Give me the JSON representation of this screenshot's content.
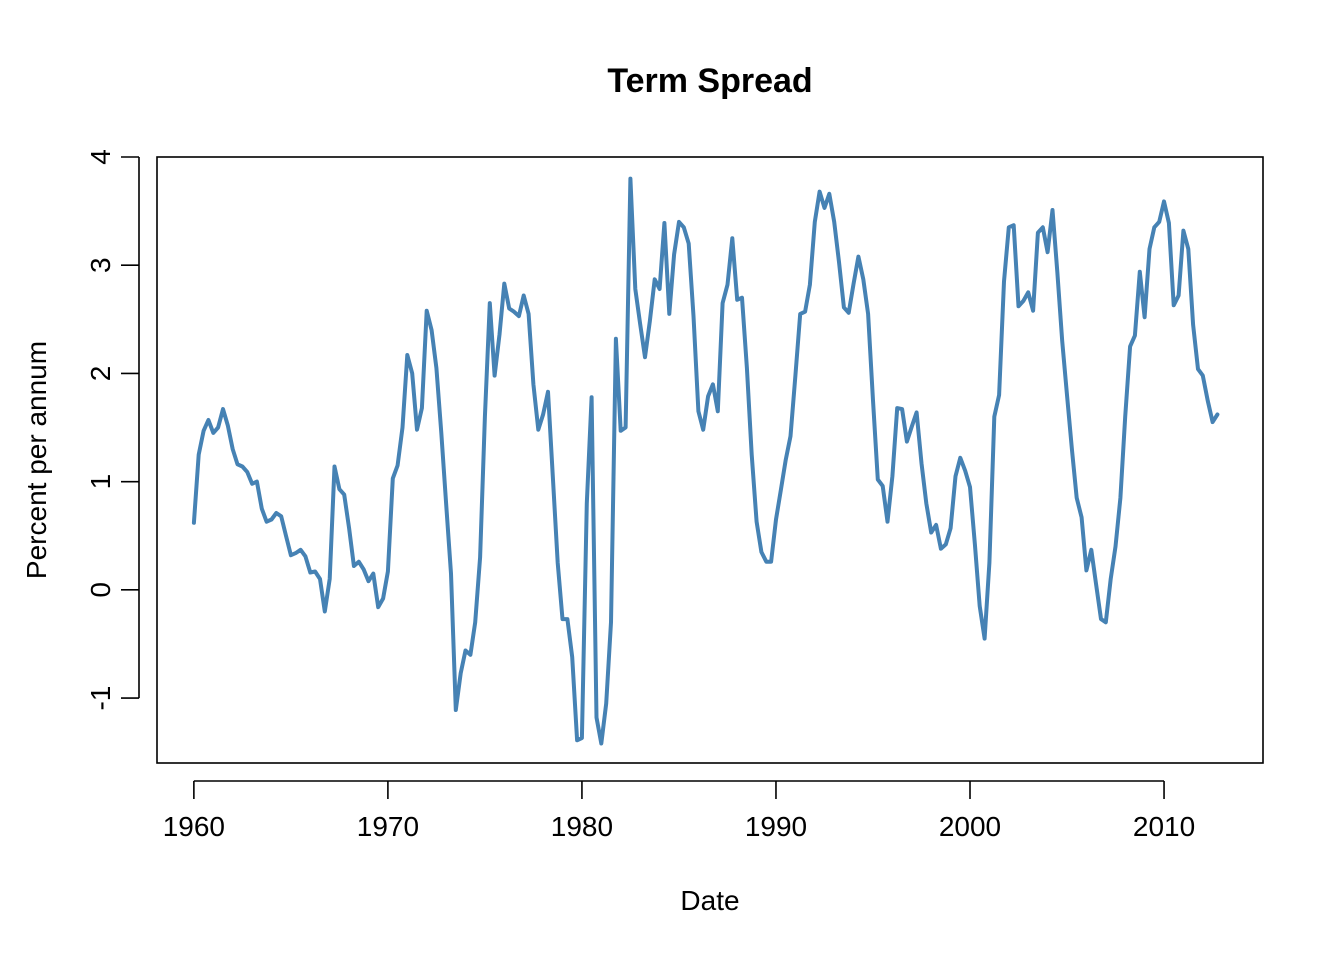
{
  "chart_data": {
    "type": "line",
    "title": "Term Spread",
    "xlabel": "Date",
    "ylabel": "Percent per annum",
    "xlim": [
      1958.1,
      2015.1
    ],
    "ylim": [
      -1.6,
      4.0
    ],
    "x_ticks": [
      1960,
      1970,
      1980,
      1990,
      2000,
      2010
    ],
    "y_ticks": [
      -1,
      0,
      1,
      2,
      3,
      4
    ],
    "x_tick_labels": [
      "1960",
      "1970",
      "1980",
      "1990",
      "2000",
      "2010"
    ],
    "y_tick_labels": [
      "-1",
      "0",
      "1",
      "2",
      "3",
      "4"
    ],
    "grid": false,
    "legend": "none",
    "color": "#4682b4",
    "series": [
      {
        "x": [
          1960.0,
          1960.25,
          1960.5,
          1960.75,
          1961.0,
          1961.25,
          1961.5,
          1961.75,
          1962.0,
          1962.25,
          1962.5,
          1962.75,
          1963.0,
          1963.25,
          1963.5,
          1963.75,
          1964.0,
          1964.25,
          1964.5,
          1964.75,
          1965.0,
          1965.25,
          1965.5,
          1965.75,
          1966.0,
          1966.25,
          1966.5,
          1966.75,
          1967.0,
          1967.25,
          1967.5,
          1967.75,
          1968.0,
          1968.25,
          1968.5,
          1968.75,
          1969.0,
          1969.25,
          1969.5,
          1969.75,
          1970.0,
          1970.25,
          1970.5,
          1970.75,
          1971.0,
          1971.25,
          1971.5,
          1971.75,
          1972.0,
          1972.25,
          1972.5,
          1972.75,
          1973.0,
          1973.25,
          1973.5,
          1973.75,
          1974.0,
          1974.25,
          1974.5,
          1974.75,
          1975.0,
          1975.25,
          1975.5,
          1975.75,
          1976.0,
          1976.25,
          1976.5,
          1976.75,
          1977.0,
          1977.25,
          1977.5,
          1977.75,
          1978.0,
          1978.25,
          1978.5,
          1978.75,
          1979.0,
          1979.25,
          1979.5,
          1979.75,
          1980.0,
          1980.25,
          1980.5,
          1980.75,
          1981.0,
          1981.25,
          1981.5,
          1981.75,
          1982.0,
          1982.25,
          1982.5,
          1982.75,
          1983.0,
          1983.25,
          1983.5,
          1983.75,
          1984.0,
          1984.25,
          1984.5,
          1984.75,
          1985.0,
          1985.25,
          1985.5,
          1985.75,
          1986.0,
          1986.25,
          1986.5,
          1986.75,
          1987.0,
          1987.25,
          1987.5,
          1987.75,
          1988.0,
          1988.25,
          1988.5,
          1988.75,
          1989.0,
          1989.25,
          1989.5,
          1989.75,
          1990.0,
          1990.25,
          1990.5,
          1990.75,
          1991.0,
          1991.25,
          1991.5,
          1991.75,
          1992.0,
          1992.25,
          1992.5,
          1992.75,
          1993.0,
          1993.25,
          1993.5,
          1993.75,
          1994.0,
          1994.25,
          1994.5,
          1994.75,
          1995.0,
          1995.25,
          1995.5,
          1995.75,
          1996.0,
          1996.25,
          1996.5,
          1996.75,
          1997.0,
          1997.25,
          1997.5,
          1997.75,
          1998.0,
          1998.25,
          1998.5,
          1998.75,
          1999.0,
          1999.25,
          1999.5,
          1999.75,
          2000.0,
          2000.25,
          2000.5,
          2000.75,
          2001.0,
          2001.25,
          2001.5,
          2001.75,
          2002.0,
          2002.25,
          2002.5,
          2002.75,
          2003.0,
          2003.25,
          2003.5,
          2003.75,
          2004.0,
          2004.25,
          2004.5,
          2004.75,
          2005.0,
          2005.25,
          2005.5,
          2005.75,
          2006.0,
          2006.25,
          2006.5,
          2006.75,
          2007.0,
          2007.25,
          2007.5,
          2007.75,
          2008.0,
          2008.25,
          2008.5,
          2008.75,
          2009.0,
          2009.25,
          2009.5,
          2009.75,
          2010.0,
          2010.25,
          2010.5,
          2010.75,
          2011.0,
          2011.25,
          2011.5,
          2011.75,
          2012.0,
          2012.25,
          2012.5,
          2012.75
        ],
        "y": [
          0.62,
          1.25,
          1.47,
          1.57,
          1.45,
          1.5,
          1.67,
          1.52,
          1.3,
          1.16,
          1.14,
          1.09,
          0.98,
          1.0,
          0.75,
          0.63,
          0.65,
          0.71,
          0.68,
          0.5,
          0.32,
          0.34,
          0.37,
          0.31,
          0.16,
          0.17,
          0.1,
          -0.2,
          0.1,
          1.14,
          0.93,
          0.88,
          0.57,
          0.22,
          0.26,
          0.19,
          0.08,
          0.15,
          -0.16,
          -0.08,
          0.17,
          1.03,
          1.15,
          1.5,
          2.17,
          2.0,
          1.48,
          1.68,
          2.58,
          2.4,
          2.05,
          1.45,
          0.8,
          0.15,
          -1.11,
          -0.77,
          -0.56,
          -0.6,
          -0.3,
          0.3,
          1.6,
          2.65,
          1.98,
          2.36,
          2.83,
          2.6,
          2.57,
          2.53,
          2.72,
          2.55,
          1.9,
          1.48,
          1.62,
          1.83,
          1.05,
          0.25,
          -0.27,
          -0.27,
          -0.62,
          -1.39,
          -1.37,
          0.8,
          1.78,
          -1.18,
          -1.42,
          -1.05,
          -0.3,
          2.32,
          1.47,
          1.5,
          3.8,
          2.78,
          2.46,
          2.15,
          2.48,
          2.87,
          2.78,
          3.39,
          2.55,
          3.1,
          3.4,
          3.35,
          3.2,
          2.53,
          1.65,
          1.48,
          1.79,
          1.9,
          1.65,
          2.65,
          2.82,
          3.25,
          2.68,
          2.7,
          2.05,
          1.25,
          0.63,
          0.35,
          0.26,
          0.26,
          0.65,
          0.92,
          1.2,
          1.42,
          1.98,
          2.55,
          2.57,
          2.82,
          3.4,
          3.68,
          3.53,
          3.66,
          3.4,
          3.03,
          2.61,
          2.56,
          2.83,
          3.08,
          2.87,
          2.55,
          1.75,
          1.02,
          0.96,
          0.63,
          1.05,
          1.68,
          1.67,
          1.37,
          1.51,
          1.64,
          1.17,
          0.8,
          0.53,
          0.6,
          0.38,
          0.42,
          0.57,
          1.05,
          1.22,
          1.1,
          0.95,
          0.42,
          -0.15,
          -0.45,
          0.25,
          1.6,
          1.8,
          2.85,
          3.35,
          3.37,
          2.62,
          2.67,
          2.75,
          2.58,
          3.3,
          3.35,
          3.12,
          3.51,
          2.94,
          2.3,
          1.8,
          1.3,
          0.85,
          0.67,
          0.18,
          0.37,
          0.05,
          -0.27,
          -0.3,
          0.1,
          0.4,
          0.85,
          1.6,
          2.25,
          2.35,
          2.94,
          2.52,
          3.15,
          3.35,
          3.4,
          3.59,
          3.39,
          2.63,
          2.72,
          3.32,
          3.15,
          2.45,
          2.04,
          1.98,
          1.75,
          1.55,
          1.62
        ]
      }
    ]
  }
}
